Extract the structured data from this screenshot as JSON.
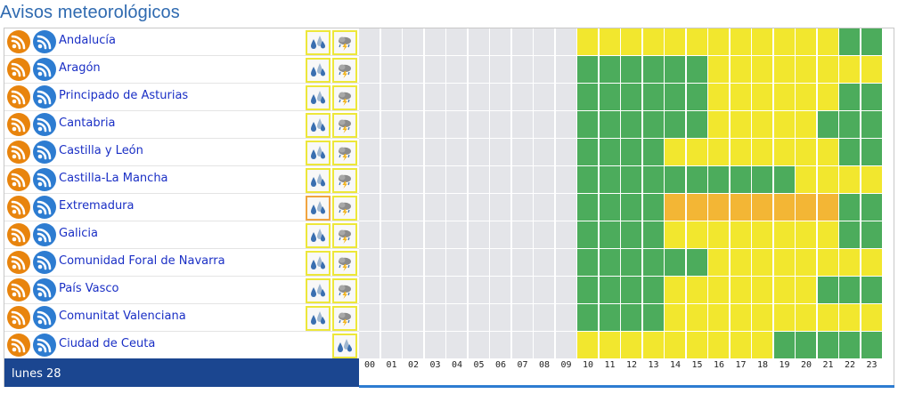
{
  "header": {
    "title": "Avisos meteorológicos"
  },
  "regions": [
    {
      "name": "Andalucía",
      "phenomena": [
        "rain-icon",
        "storm-icon"
      ],
      "alert": [
        "none"
      ]
    },
    {
      "name": "Aragón",
      "phenomena": [
        "rain-icon",
        "storm-icon"
      ]
    },
    {
      "name": "Principado de Asturias",
      "phenomena": [
        "rain-icon",
        "storm-icon"
      ]
    },
    {
      "name": "Cantabria",
      "phenomena": [
        "rain-icon",
        "storm-icon"
      ]
    },
    {
      "name": "Castilla y León",
      "phenomena": [
        "rain-icon",
        "storm-icon"
      ]
    },
    {
      "name": "Castilla-La Mancha",
      "phenomena": [
        "rain-icon",
        "storm-icon"
      ]
    },
    {
      "name": "Extremadura",
      "phenomena": [
        "rain-icon",
        "storm-icon"
      ],
      "highlight_first": true
    },
    {
      "name": "Galicia",
      "phenomena": [
        "rain-icon",
        "storm-icon"
      ]
    },
    {
      "name": "Comunidad Foral de Navarra",
      "phenomena": [
        "rain-icon",
        "storm-icon"
      ]
    },
    {
      "name": "País Vasco",
      "phenomena": [
        "rain-icon",
        "storm-icon"
      ]
    },
    {
      "name": "Comunitat Valenciana",
      "phenomena": [
        "rain-icon",
        "storm-icon"
      ]
    },
    {
      "name": "Ciudad de Ceuta",
      "phenomena": [
        "rain-icon"
      ]
    }
  ],
  "day": {
    "label": "lunes 28"
  },
  "hours": [
    "00",
    "01",
    "02",
    "03",
    "04",
    "05",
    "06",
    "07",
    "08",
    "09",
    "10",
    "11",
    "12",
    "13",
    "14",
    "15",
    "16",
    "17",
    "18",
    "19",
    "20",
    "21",
    "22",
    "23"
  ],
  "legend_colors": {
    "n": "#e4e5e9",
    "g": "#4cac5c",
    "y": "#f2e72e",
    "o": "#f3b635"
  },
  "alert_grid": [
    "nnnnnnnnnnyyyyyyyyyyyygg",
    "nnnnnnnnnnggggggyyyyyyyy",
    "nnnnnnnnnnggggggyyyyyygg",
    "nnnnnnnnnnggggggyyyyyggg",
    "nnnnnnnnnnggggyyyyyyyygg",
    "nnnnnnnnnnggggggggggyyyy",
    "nnnnnnnnnnggggoooooooogg",
    "nnnnnnnnnnggggyyyyyyyygg",
    "nnnnnnnnnnggggggyyyyyyyy",
    "nnnnnnnnnnggggyyyyyyyggg",
    "nnnnnnnnnnggggyyyyyyyyyy",
    "nnnnnnnnnnyyyyyyyyyggggg"
  ]
}
